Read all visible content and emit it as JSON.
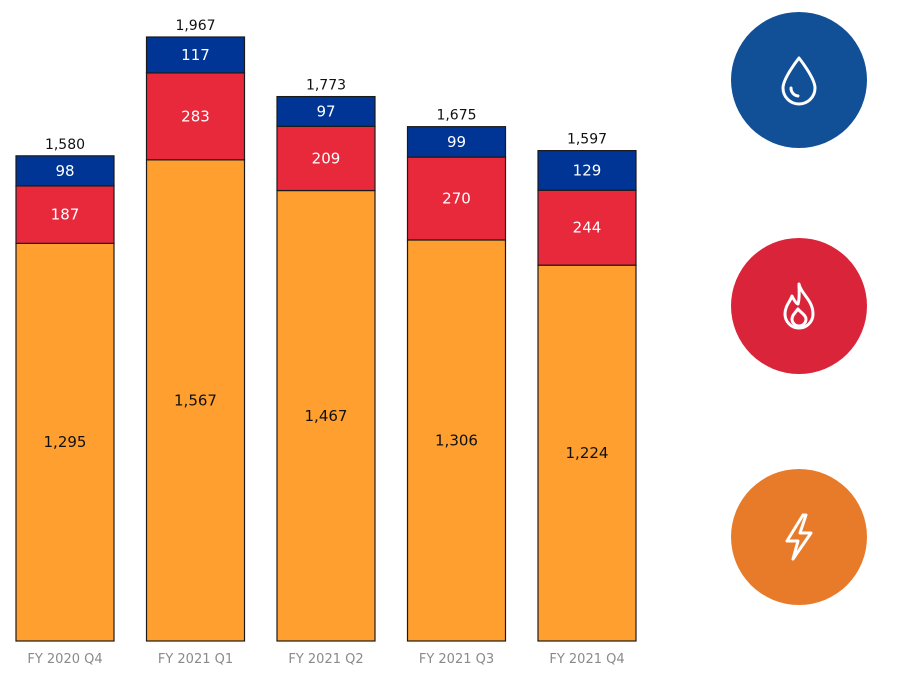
{
  "chart_data": {
    "type": "bar",
    "stacked": true,
    "categories": [
      "FY 2020 Q4",
      "FY 2021 Q1",
      "FY 2021 Q2",
      "FY 2021 Q3",
      "FY 2021 Q4"
    ],
    "series": [
      {
        "values": [
          1295,
          1567,
          1467,
          1306,
          1224
        ],
        "color": "#ff9f2f",
        "label_color": "#111111"
      },
      {
        "values": [
          187,
          283,
          209,
          270,
          244
        ],
        "color": "#e8293c",
        "label_color": "#ffffff"
      },
      {
        "values": [
          98,
          117,
          97,
          99,
          129
        ],
        "color": "#003595",
        "label_color": "#ffffff"
      }
    ],
    "totals": [
      "1,580",
      "1,967",
      "1,773",
      "1,675",
      "1,597"
    ],
    "ylim": [
      0,
      1967
    ],
    "grid": false,
    "legend": "right"
  },
  "legend_icons": [
    {
      "icon": "water-drop-icon",
      "color": "#114f96"
    },
    {
      "icon": "flame-icon",
      "color": "#d9243a"
    },
    {
      "icon": "lightning-bolt-icon",
      "color": "#e87b2a"
    }
  ]
}
